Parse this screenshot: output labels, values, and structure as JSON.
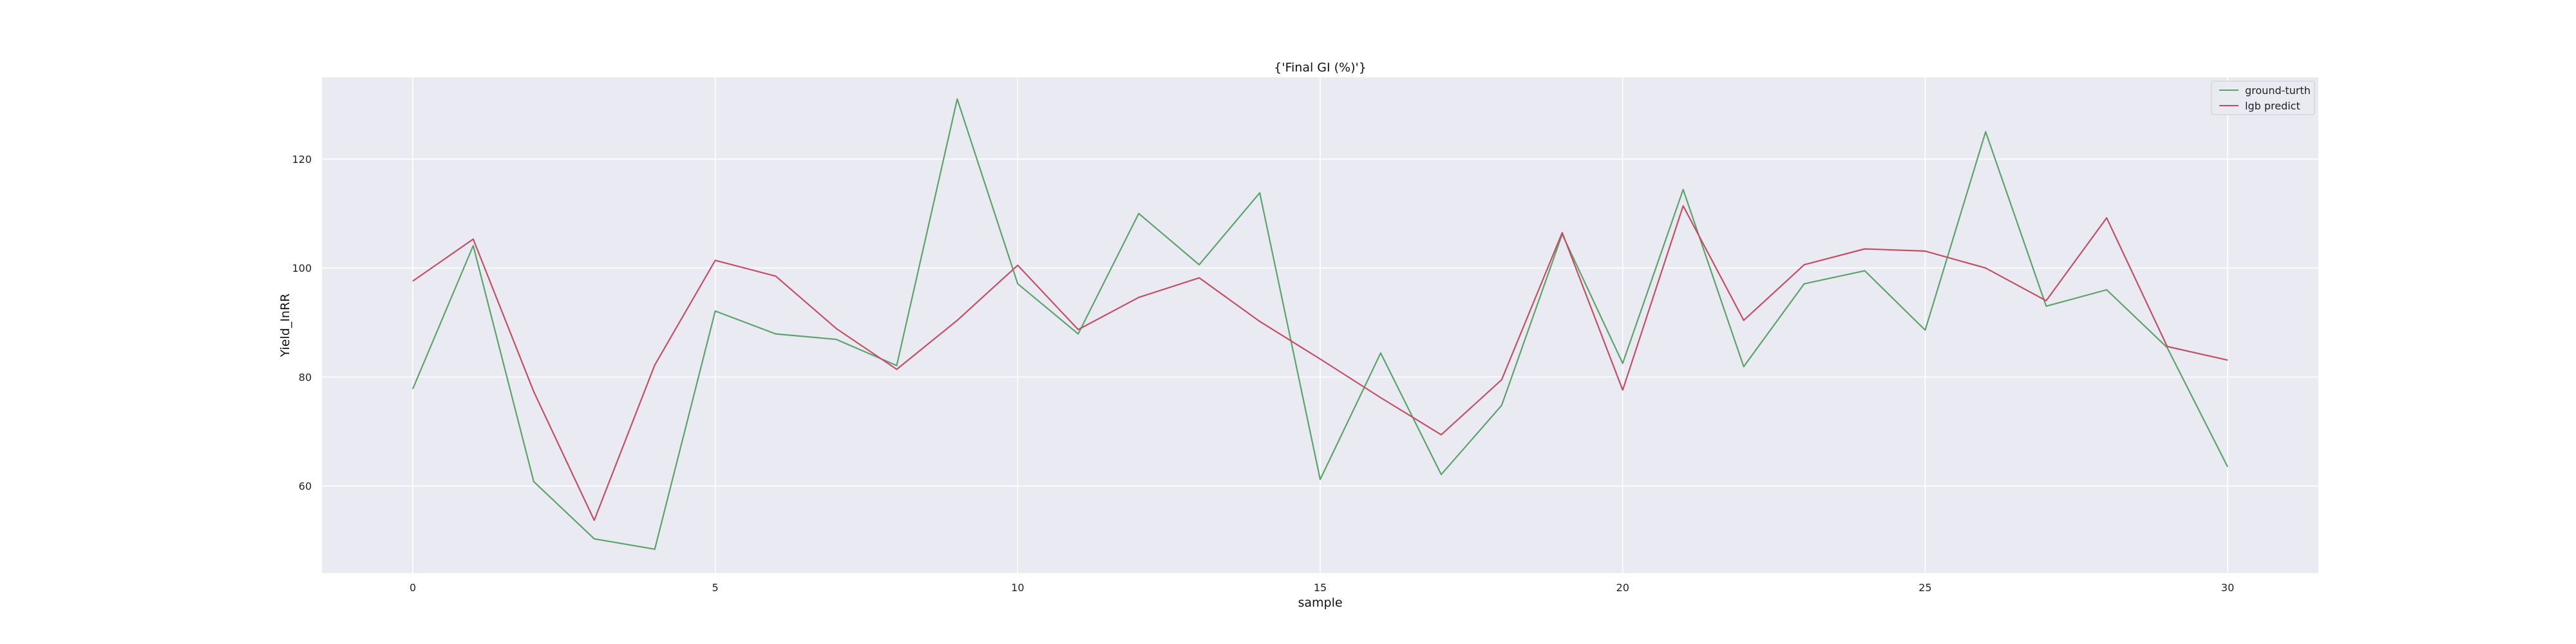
{
  "chart_data": {
    "type": "line",
    "title": "{'Final GI (%)'}",
    "xlabel": "sample",
    "ylabel": "Yield_InRR",
    "xlim": [
      -1.5,
      31.5
    ],
    "ylim": [
      44,
      135
    ],
    "xticks": [
      0,
      5,
      10,
      15,
      20,
      25,
      30
    ],
    "yticks": [
      60,
      80,
      100,
      120
    ],
    "grid": true,
    "legend_position": "top-right",
    "x": [
      0,
      1,
      2,
      3,
      4,
      5,
      6,
      7,
      8,
      9,
      10,
      11,
      12,
      13,
      14,
      15,
      16,
      17,
      18,
      19,
      20,
      21,
      22,
      23,
      24,
      25,
      26,
      27,
      28,
      29,
      30
    ],
    "series": [
      {
        "name": "ground-turth",
        "color": "#5aa469",
        "values": [
          77.8,
          104.1,
          60.8,
          50.3,
          48.4,
          92.1,
          87.9,
          86.9,
          82.1,
          131.0,
          97.1,
          87.9,
          110.0,
          100.6,
          113.8,
          61.2,
          84.4,
          62.1,
          74.8,
          106.2,
          82.5,
          114.4,
          81.9,
          97.1,
          99.5,
          88.6,
          125.0,
          93.0,
          96.0,
          85.4,
          63.5
        ]
      },
      {
        "name": "lgb predict",
        "color": "#c44e64",
        "values": [
          97.6,
          105.3,
          77.3,
          53.7,
          82.2,
          101.4,
          98.5,
          88.9,
          81.4,
          90.4,
          100.5,
          88.7,
          94.6,
          98.2,
          90.2,
          83.3,
          76.2,
          69.4,
          79.5,
          106.5,
          77.6,
          111.4,
          90.4,
          100.6,
          103.5,
          103.1,
          100.0,
          94.0,
          109.2,
          85.6,
          83.1
        ]
      }
    ]
  }
}
